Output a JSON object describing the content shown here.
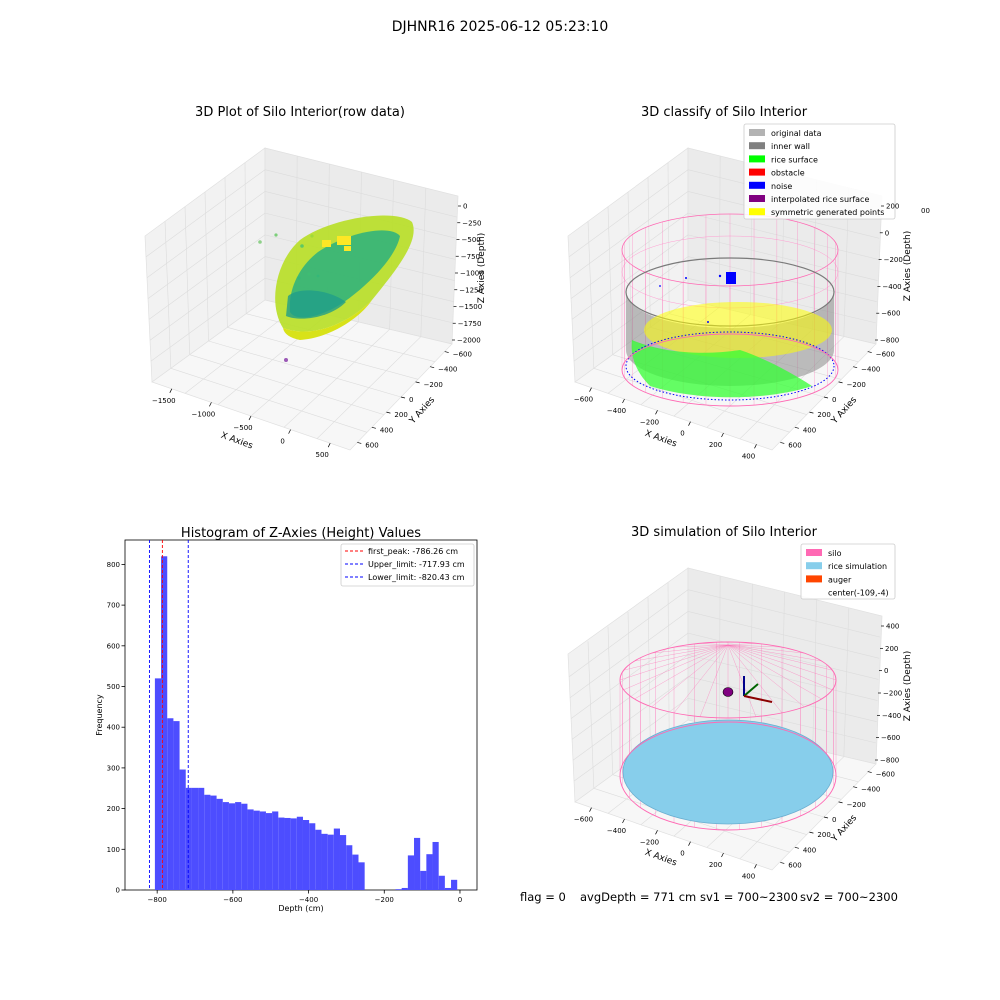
{
  "figure_title": "DJHNR16 2025-06-12 05:23:10",
  "status_line": {
    "flag": "flag = 0",
    "avg_depth": "avgDepth = 771 cm",
    "sv1": "sv1 = 700~2300",
    "sv2": "sv2 = 700~2300"
  },
  "colors": {
    "hist_bar": "#4d4dff",
    "peak_line": "#ff0000",
    "limit_line": "#0000ff",
    "silo": "#ff69b4",
    "rice_simulation": "#87ceeb",
    "auger": "#ff4500",
    "original_data": "#b3b3b3",
    "inner_wall": "#808080",
    "rice_surface": "#00ff00",
    "obstacle": "#ff0000",
    "noise": "#0000ff",
    "interpolated_rice_surface": "#800080",
    "symmetric_generated_points": "#ffff00"
  },
  "chart_data": [
    {
      "type": "scatter3d",
      "title": "3D Plot of Silo Interior(row data)",
      "xlabel": "X Axies",
      "ylabel": "Y Axies",
      "zlabel": "Z Axies (Depth)",
      "x_ticks": [
        "−1500",
        "−1000",
        "−500",
        "0",
        "500"
      ],
      "y_ticks": [
        "−600",
        "−400",
        "−200",
        "0",
        "200",
        "400",
        "600"
      ],
      "z_ticks": [
        "0",
        "−250",
        "−500",
        "−750",
        "−1000",
        "−1250",
        "−1500",
        "−1750",
        "−2000"
      ],
      "colormap": "viridis"
    },
    {
      "type": "scatter3d",
      "title": "3D classify of Silo Interior",
      "xlabel": "X Axies",
      "ylabel": "Y Axies",
      "zlabel": "Z Axies (Depth)",
      "x_ticks": [
        "−600",
        "−400",
        "−200",
        "0",
        "200",
        "400"
      ],
      "y_ticks": [
        "−600",
        "−400",
        "−200",
        "0",
        "200",
        "400",
        "600"
      ],
      "z_ticks": [
        "200",
        "0",
        "−200",
        "−400",
        "−600",
        "−800"
      ],
      "z_top_partial": "00",
      "legend": [
        "original data",
        "inner wall",
        "rice surface",
        "obstacle",
        "noise",
        "interpolated rice surface",
        "symmetric generated points"
      ],
      "legend_placement": "top-right"
    },
    {
      "type": "bar",
      "title": "Histogram of Z-Axies (Height) Values",
      "xlabel": "Depth (cm)",
      "ylabel": "Frequency",
      "xlim": [
        -885,
        45
      ],
      "ylim": [
        0,
        860
      ],
      "x_ticks": [
        -800,
        -600,
        -400,
        -200,
        0
      ],
      "x_tick_labels": [
        "−800",
        "−600",
        "−400",
        "−200",
        "0"
      ],
      "y_ticks": [
        0,
        100,
        200,
        300,
        400,
        500,
        600,
        700,
        800
      ],
      "bin_start": -806,
      "bin_width": 16.3,
      "values": [
        520,
        820,
        422,
        415,
        296,
        251,
        251,
        251,
        234,
        232,
        224,
        216,
        213,
        216,
        212,
        198,
        195,
        193,
        189,
        193,
        178,
        177,
        176,
        180,
        172,
        164,
        148,
        138,
        136,
        151,
        135,
        110,
        87,
        68,
        0,
        0,
        0,
        0,
        0,
        2,
        5,
        85,
        128,
        47,
        88,
        118,
        35,
        5,
        25
      ],
      "lines": [
        {
          "label": "first_peak: -786.26 cm",
          "x": -786.26,
          "style": "dashed",
          "color": "#ff0000"
        },
        {
          "label": "Upper_limit: -717.93 cm",
          "x": -717.93,
          "style": "dashed",
          "color": "#0000ff"
        },
        {
          "label": "Lower_limit: -820.43 cm",
          "x": -820.43,
          "style": "dashed",
          "color": "#0000ff"
        }
      ],
      "legend_placement": "top-right"
    },
    {
      "type": "scatter3d",
      "title": "3D simulation of Silo Interior",
      "xlabel": "X Axies",
      "ylabel": "Y Axies",
      "zlabel": "Z Axies (Depth)",
      "x_ticks": [
        "−600",
        "−400",
        "−200",
        "0",
        "200",
        "400"
      ],
      "y_ticks": [
        "−600",
        "−400",
        "−200",
        "0",
        "200",
        "400",
        "600"
      ],
      "z_ticks": [
        "400",
        "200",
        "0",
        "−200",
        "−400",
        "−600",
        "−800"
      ],
      "legend": [
        "silo",
        "rice simulation",
        "auger",
        "center(-109,-4)"
      ],
      "legend_placement": "top-right"
    }
  ]
}
